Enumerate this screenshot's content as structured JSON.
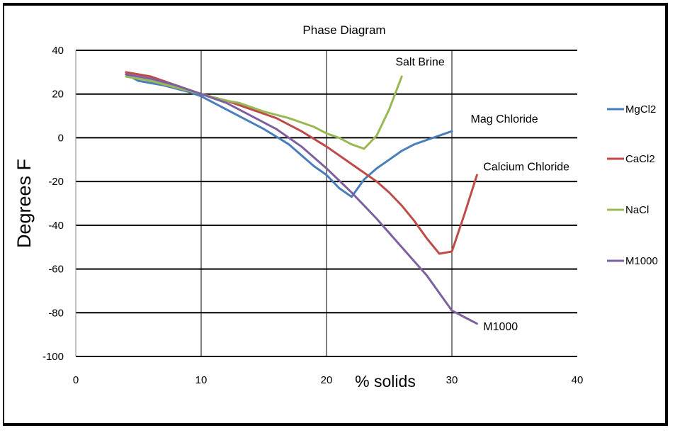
{
  "chart_data": {
    "type": "line",
    "title": "Phase Diagram",
    "xlabel": "% solids",
    "ylabel": "Degrees F",
    "xlim": [
      0,
      40
    ],
    "ylim": [
      -100,
      40
    ],
    "x_ticks": [
      0,
      10,
      20,
      30,
      40
    ],
    "y_ticks": [
      -100,
      -80,
      -60,
      -40,
      -20,
      0,
      20,
      40
    ],
    "x_tick_labels": [
      "0",
      "10",
      "20",
      "30",
      "40"
    ],
    "y_tick_labels": [
      "-100",
      "-80",
      "-60",
      "-40",
      "-20",
      "0",
      "20",
      "40"
    ],
    "grid": true,
    "legend_position": "right",
    "series": [
      {
        "name": "MgCl2",
        "color": "#4A7EBB",
        "x": [
          4,
          5,
          7,
          9,
          10,
          11,
          13,
          15,
          17,
          19,
          20,
          21,
          22,
          23,
          24,
          25,
          26,
          27,
          28,
          29,
          30
        ],
        "y": [
          29,
          26,
          24,
          21,
          19,
          16,
          10,
          4,
          -3,
          -13,
          -17,
          -23,
          -27,
          -19,
          -14,
          -10,
          -6,
          -3,
          -1,
          1,
          3
        ]
      },
      {
        "name": "CaCl2",
        "color": "#BE4B48",
        "x": [
          4,
          6,
          8,
          10,
          12,
          14,
          16,
          18,
          20,
          22,
          24,
          25,
          26,
          27,
          28,
          29,
          30,
          31,
          32
        ],
        "y": [
          30,
          28,
          24,
          20,
          17,
          13,
          9,
          3,
          -4,
          -12,
          -20,
          -25,
          -31,
          -38,
          -46,
          -53,
          -52,
          -35,
          -17
        ]
      },
      {
        "name": "NaCl",
        "color": "#98B954",
        "x": [
          4,
          6,
          8,
          10,
          12,
          13,
          15,
          17,
          19,
          20,
          21,
          22,
          23,
          24,
          25,
          26
        ],
        "y": [
          28,
          26,
          23,
          20,
          17,
          16,
          12,
          9,
          5,
          2,
          0,
          -3,
          -5,
          1,
          13,
          28
        ]
      },
      {
        "name": "M1000",
        "color": "#7D60A0",
        "x": [
          4,
          6,
          8,
          10,
          12,
          14,
          16,
          18,
          20,
          22,
          24,
          26,
          28,
          30,
          31,
          32
        ],
        "y": [
          29,
          27,
          24,
          20,
          16,
          10,
          4,
          -4,
          -14,
          -25,
          -37,
          -50,
          -63,
          -79,
          -82,
          -85
        ]
      }
    ],
    "annotations": [
      {
        "text": "Salt Brine",
        "x": 25.5,
        "y": 33
      },
      {
        "text": "Mag Chloride",
        "x": 31.5,
        "y": 7
      },
      {
        "text": "Calcium Chloride",
        "x": 32.5,
        "y": -15
      },
      {
        "text": "M1000",
        "x": 32.5,
        "y": -88
      }
    ]
  }
}
